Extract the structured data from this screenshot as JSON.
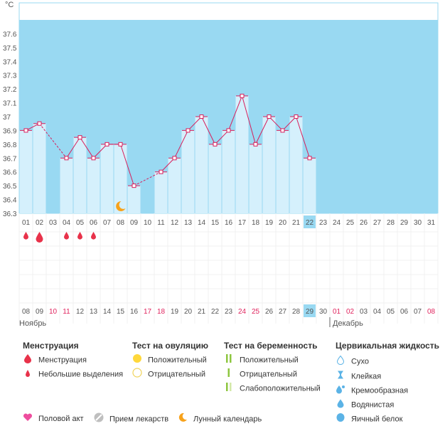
{
  "chart_data": {
    "type": "line",
    "unit": "°C",
    "ylim": [
      36.3,
      37.7
    ],
    "yticks": [
      "36.3",
      "36.4",
      "36.5",
      "36.6",
      "36.7",
      "36.8",
      "36.9",
      "37",
      "37.1",
      "37.2",
      "37.3",
      "37.4",
      "37.5",
      "37.6"
    ],
    "days": [
      "01",
      "02",
      "03",
      "04",
      "05",
      "06",
      "07",
      "08",
      "09",
      "10",
      "11",
      "12",
      "13",
      "14",
      "15",
      "16",
      "17",
      "18",
      "19",
      "20",
      "21",
      "22",
      "23",
      "24",
      "25",
      "26",
      "27",
      "28",
      "29",
      "30",
      "31"
    ],
    "temperatures": [
      36.9,
      36.95,
      null,
      36.7,
      36.85,
      36.7,
      36.8,
      36.8,
      36.5,
      null,
      36.6,
      36.7,
      36.9,
      37.0,
      36.8,
      36.9,
      37.15,
      36.8,
      37.0,
      36.9,
      37.0,
      36.7,
      null,
      null,
      null,
      null,
      null,
      null,
      null,
      null,
      null
    ],
    "coverline_day": "22",
    "cycle_dates": [
      "08",
      "09",
      "10",
      "11",
      "12",
      "13",
      "14",
      "15",
      "16",
      "17",
      "18",
      "19",
      "20",
      "21",
      "22",
      "23",
      "24",
      "25",
      "26",
      "27",
      "28",
      "29",
      "30",
      "01",
      "02",
      "03",
      "04",
      "05",
      "06",
      "07",
      "08"
    ],
    "weekend_date_indices": [
      2,
      3,
      9,
      10,
      16,
      17,
      23,
      24,
      30
    ],
    "highlight_index": 21,
    "month_left": "Ноябрь",
    "month_right": "Декабрь",
    "menstruation_days": [
      {
        "index": 0,
        "size": "small"
      },
      {
        "index": 1,
        "size": "large"
      },
      {
        "index": 3,
        "size": "small"
      },
      {
        "index": 4,
        "size": "small"
      },
      {
        "index": 5,
        "size": "small"
      }
    ],
    "moon_day_index": 7
  },
  "legend": {
    "menstruation": {
      "title": "Менструация",
      "items": [
        "Менструация",
        "Небольшие выделения"
      ]
    },
    "ovulation": {
      "title": "Тест на овуляцию",
      "items": [
        "Положительный",
        "Отрицательный"
      ]
    },
    "pregnancy": {
      "title": "Тест на беременность",
      "items": [
        "Положительный",
        "Отрицательный",
        "Слабоположительный"
      ]
    },
    "cervical": {
      "title": "Цервикальная жидкость",
      "items": [
        "Сухо",
        "Клейкая",
        "Кремообразная",
        "Водянистая",
        "Яичный белок"
      ]
    },
    "bottom": [
      "Половой акт",
      "Прием лекарств",
      "Лунный календарь"
    ]
  },
  "colors": {
    "background_band": "#99d9f2",
    "bar": "#d5f0fc",
    "line": "#d81e5b",
    "weekend_text": "#e0245e",
    "highlight": "#99d9f2",
    "moon": "#f7a21b",
    "heart": "#ee4d9e",
    "ovulation_positive": "#ffd83b"
  }
}
